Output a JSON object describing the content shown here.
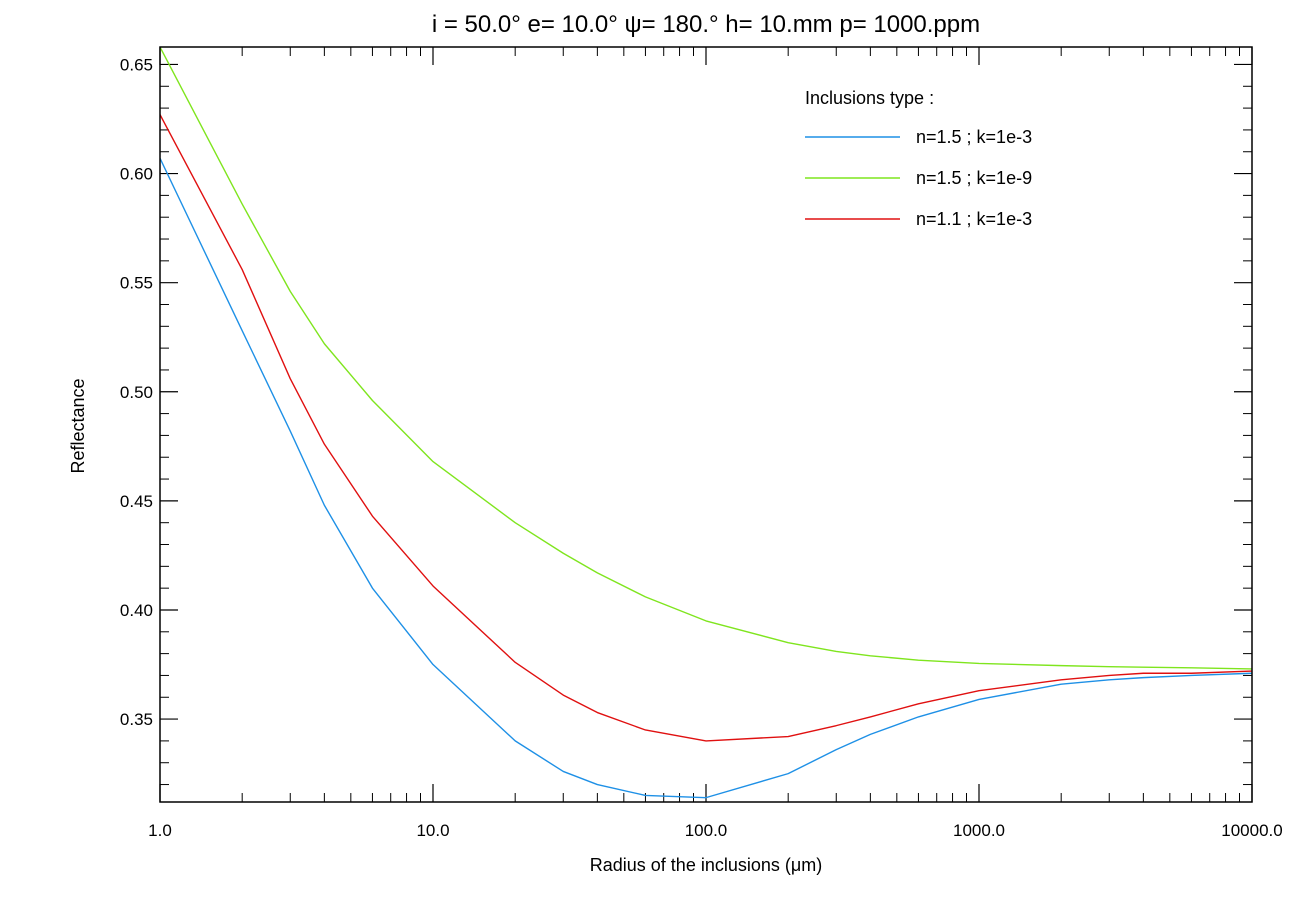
{
  "chart_data": {
    "type": "line",
    "title": "i = 50.0°   e= 10.0°   ψ= 180.°   h= 10.mm   p=  1000.ppm",
    "xlabel": "Radius of the inclusions (μm)",
    "ylabel": "Reflectance",
    "x_scale": "log",
    "xlim": [
      1.0,
      10000.0
    ],
    "ylim": [
      0.312,
      0.658
    ],
    "x_ticks": [
      1.0,
      10.0,
      100.0,
      1000.0,
      10000.0
    ],
    "x_tick_labels": [
      "1.0",
      "10.0",
      "100.0",
      "1000.0",
      "10000.0"
    ],
    "y_ticks": [
      0.35,
      0.4,
      0.45,
      0.5,
      0.55,
      0.6,
      0.65
    ],
    "y_tick_labels": [
      "0.35",
      "0.40",
      "0.45",
      "0.50",
      "0.55",
      "0.60",
      "0.65"
    ],
    "grid": false,
    "legend": {
      "title": "Inclusions type :",
      "placement": "top-right"
    },
    "x": [
      1,
      2,
      3,
      4,
      6,
      10,
      20,
      30,
      40,
      60,
      100,
      200,
      300,
      400,
      600,
      1000,
      2000,
      3000,
      4000,
      6000,
      10000
    ],
    "series": [
      {
        "name": "n=1.5 ; k=1e-3",
        "color": "#1e90e6",
        "values": [
          0.607,
          0.528,
          0.482,
          0.448,
          0.41,
          0.375,
          0.34,
          0.326,
          0.32,
          0.315,
          0.314,
          0.325,
          0.336,
          0.343,
          0.351,
          0.359,
          0.366,
          0.368,
          0.369,
          0.37,
          0.371
        ]
      },
      {
        "name": "n=1.5 ; k=1e-9",
        "color": "#7fe51e",
        "values": [
          0.658,
          0.586,
          0.546,
          0.522,
          0.496,
          0.468,
          0.44,
          0.426,
          0.417,
          0.406,
          0.395,
          0.385,
          0.381,
          0.379,
          0.377,
          0.3755,
          0.3745,
          0.374,
          0.3738,
          0.3735,
          0.373
        ]
      },
      {
        "name": "n=1.1 ; k=1e-3",
        "color": "#e01010",
        "values": [
          0.627,
          0.556,
          0.506,
          0.476,
          0.443,
          0.411,
          0.376,
          0.361,
          0.353,
          0.345,
          0.34,
          0.342,
          0.347,
          0.351,
          0.357,
          0.363,
          0.368,
          0.37,
          0.371,
          0.371,
          0.372
        ]
      }
    ]
  }
}
